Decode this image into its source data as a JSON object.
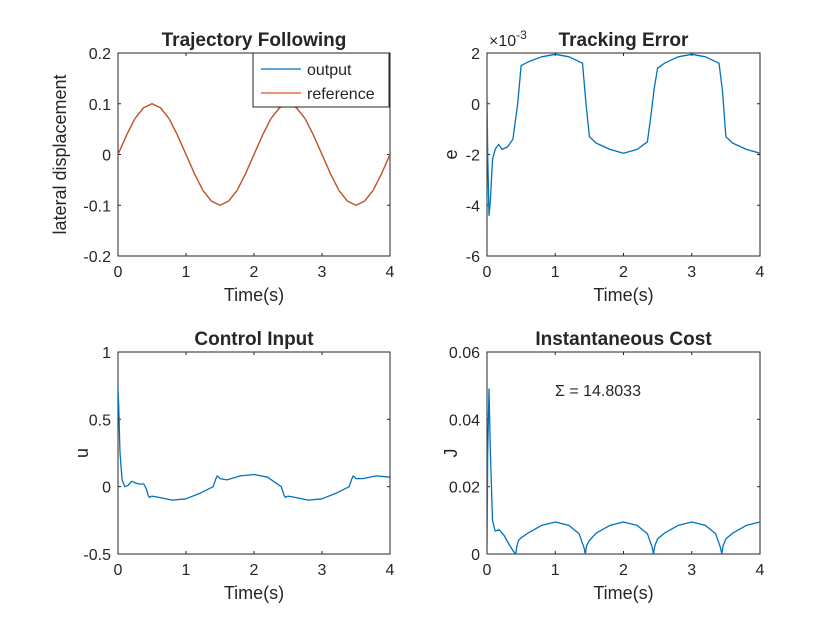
{
  "chart_data": [
    {
      "id": "traj",
      "type": "line",
      "title": "Trajectory Following",
      "xlabel": "Time(s)",
      "ylabel": "lateral displacement",
      "xlim": [
        0,
        4
      ],
      "ylim": [
        -0.2,
        0.2
      ],
      "xticks": [
        0,
        1,
        2,
        3,
        4
      ],
      "xtick_labels": [
        "0",
        "1",
        "2",
        "3",
        "4"
      ],
      "yticks": [
        -0.2,
        -0.1,
        0,
        0.1,
        0.2
      ],
      "ytick_labels": [
        "-0.2",
        "-0.1",
        "0",
        "0.1",
        "0.2"
      ],
      "legend": {
        "position": "top-right",
        "entries": [
          "output",
          "reference"
        ]
      },
      "series": [
        {
          "name": "output",
          "color": "#0072bd",
          "x": [
            0,
            0.125,
            0.25,
            0.375,
            0.5,
            0.625,
            0.75,
            0.875,
            1,
            1.125,
            1.25,
            1.375,
            1.5,
            1.625,
            1.75,
            1.875,
            2,
            2.125,
            2.25,
            2.375,
            2.5,
            2.625,
            2.75,
            2.875,
            3,
            3.125,
            3.25,
            3.375,
            3.5,
            3.625,
            3.75,
            3.875,
            4
          ],
          "y": [
            0,
            0.038,
            0.071,
            0.092,
            0.1,
            0.092,
            0.071,
            0.038,
            0,
            -0.038,
            -0.071,
            -0.092,
            -0.1,
            -0.092,
            -0.071,
            -0.038,
            0,
            0.038,
            0.071,
            0.092,
            0.1,
            0.092,
            0.071,
            0.038,
            0,
            -0.038,
            -0.071,
            -0.092,
            -0.1,
            -0.092,
            -0.071,
            -0.038,
            0
          ]
        },
        {
          "name": "reference",
          "color": "#d95319",
          "x": [
            0,
            0.125,
            0.25,
            0.375,
            0.5,
            0.625,
            0.75,
            0.875,
            1,
            1.125,
            1.25,
            1.375,
            1.5,
            1.625,
            1.75,
            1.875,
            2,
            2.125,
            2.25,
            2.375,
            2.5,
            2.625,
            2.75,
            2.875,
            3,
            3.125,
            3.25,
            3.375,
            3.5,
            3.625,
            3.75,
            3.875,
            4
          ],
          "y": [
            0,
            0.038,
            0.071,
            0.092,
            0.1,
            0.092,
            0.071,
            0.038,
            0,
            -0.038,
            -0.071,
            -0.092,
            -0.1,
            -0.092,
            -0.071,
            -0.038,
            0,
            0.038,
            0.071,
            0.092,
            0.1,
            0.092,
            0.071,
            0.038,
            0,
            -0.038,
            -0.071,
            -0.092,
            -0.1,
            -0.092,
            -0.071,
            -0.038,
            0
          ]
        }
      ]
    },
    {
      "id": "err",
      "type": "line",
      "title": "Tracking Error",
      "exponent_label": "×10",
      "exponent_value": "-3",
      "xlabel": "Time(s)",
      "ylabel": "e",
      "xlim": [
        0,
        4
      ],
      "ylim": [
        -6,
        2
      ],
      "xticks": [
        0,
        1,
        2,
        3,
        4
      ],
      "xtick_labels": [
        "0",
        "1",
        "2",
        "3",
        "4"
      ],
      "yticks": [
        -6,
        -4,
        -2,
        0,
        2
      ],
      "ytick_labels": [
        "-6",
        "-4",
        "-2",
        "0",
        "2"
      ],
      "series": [
        {
          "name": "e",
          "color": "#0072bd",
          "x": [
            0,
            0.01,
            0.03,
            0.05,
            0.08,
            0.12,
            0.17,
            0.22,
            0.3,
            0.38,
            0.45,
            0.5,
            0.6,
            0.8,
            1.0,
            1.2,
            1.4,
            1.45,
            1.5,
            1.6,
            1.8,
            2.0,
            2.2,
            2.35,
            2.4,
            2.45,
            2.5,
            2.6,
            2.8,
            3.0,
            3.2,
            3.4,
            3.45,
            3.5,
            3.6,
            3.8,
            4.0
          ],
          "y": [
            0.3,
            -2.0,
            -4.4,
            -3.8,
            -2.2,
            -1.8,
            -1.6,
            -1.8,
            -1.7,
            -1.4,
            0,
            1.5,
            1.65,
            1.85,
            1.95,
            1.85,
            1.6,
            0,
            -1.3,
            -1.55,
            -1.8,
            -1.95,
            -1.8,
            -1.5,
            -0.5,
            0.6,
            1.4,
            1.6,
            1.85,
            1.95,
            1.85,
            1.6,
            0.5,
            -1.3,
            -1.55,
            -1.8,
            -1.95
          ]
        }
      ]
    },
    {
      "id": "ctrl",
      "type": "line",
      "title": "Control Input",
      "xlabel": "Time(s)",
      "ylabel": "u",
      "xlim": [
        0,
        4
      ],
      "ylim": [
        -0.5,
        1
      ],
      "xticks": [
        0,
        1,
        2,
        3,
        4
      ],
      "xtick_labels": [
        "0",
        "1",
        "2",
        "3",
        "4"
      ],
      "yticks": [
        -0.5,
        0,
        0.5,
        1
      ],
      "ytick_labels": [
        "-0.5",
        "0",
        "0.5",
        "1"
      ],
      "series": [
        {
          "name": "u",
          "color": "#0072bd",
          "x": [
            0,
            0.01,
            0.03,
            0.06,
            0.1,
            0.15,
            0.2,
            0.3,
            0.38,
            0.42,
            0.44,
            0.46,
            0.5,
            0.6,
            0.8,
            1.0,
            1.2,
            1.4,
            1.44,
            1.46,
            1.5,
            1.6,
            1.8,
            2.0,
            2.2,
            2.4,
            2.44,
            2.46,
            2.5,
            2.6,
            2.8,
            3.0,
            3.2,
            3.4,
            3.44,
            3.46,
            3.5,
            3.6,
            3.8,
            4.0
          ],
          "y": [
            0.72,
            0.6,
            0.25,
            0.05,
            0.0,
            0.01,
            0.04,
            0.02,
            0.02,
            -0.02,
            -0.06,
            -0.08,
            -0.07,
            -0.08,
            -0.1,
            -0.09,
            -0.05,
            0.0,
            0.06,
            0.08,
            0.06,
            0.05,
            0.08,
            0.09,
            0.07,
            0.0,
            -0.06,
            -0.08,
            -0.07,
            -0.08,
            -0.1,
            -0.09,
            -0.05,
            0.0,
            0.06,
            0.08,
            0.06,
            0.06,
            0.08,
            0.07
          ]
        }
      ]
    },
    {
      "id": "cost",
      "type": "line",
      "title": "Instantaneous Cost",
      "annotation": "Σ = 14.8033",
      "xlabel": "Time(s)",
      "ylabel": "J",
      "xlim": [
        0,
        4
      ],
      "ylim": [
        0,
        0.06
      ],
      "xticks": [
        0,
        1,
        2,
        3,
        4
      ],
      "xtick_labels": [
        "0",
        "1",
        "2",
        "3",
        "4"
      ],
      "yticks": [
        0,
        0.02,
        0.04,
        0.06
      ],
      "ytick_labels": [
        "0",
        "0.02",
        "0.04",
        "0.06"
      ],
      "series": [
        {
          "name": "J",
          "color": "#0072bd",
          "x": [
            0,
            0.01,
            0.03,
            0.05,
            0.08,
            0.12,
            0.18,
            0.25,
            0.32,
            0.38,
            0.42,
            0.44,
            0.46,
            0.5,
            0.6,
            0.8,
            1.0,
            1.2,
            1.35,
            1.42,
            1.44,
            1.46,
            1.5,
            1.6,
            1.8,
            2.0,
            2.2,
            2.35,
            2.42,
            2.44,
            2.46,
            2.5,
            2.6,
            2.8,
            3.0,
            3.2,
            3.35,
            3.42,
            3.44,
            3.46,
            3.5,
            3.6,
            3.8,
            4.0
          ],
          "y": [
            0.0,
            0.03,
            0.049,
            0.03,
            0.01,
            0.0068,
            0.0072,
            0.0055,
            0.003,
            0.001,
            0.0,
            0.0025,
            0.004,
            0.0048,
            0.0062,
            0.0085,
            0.0095,
            0.0085,
            0.006,
            0.002,
            0.0,
            0.0025,
            0.004,
            0.0062,
            0.0085,
            0.0095,
            0.0085,
            0.006,
            0.002,
            0.0,
            0.0025,
            0.0045,
            0.0062,
            0.0085,
            0.0095,
            0.0085,
            0.006,
            0.002,
            0.0,
            0.0025,
            0.0045,
            0.0062,
            0.0085,
            0.0095
          ]
        }
      ]
    }
  ]
}
